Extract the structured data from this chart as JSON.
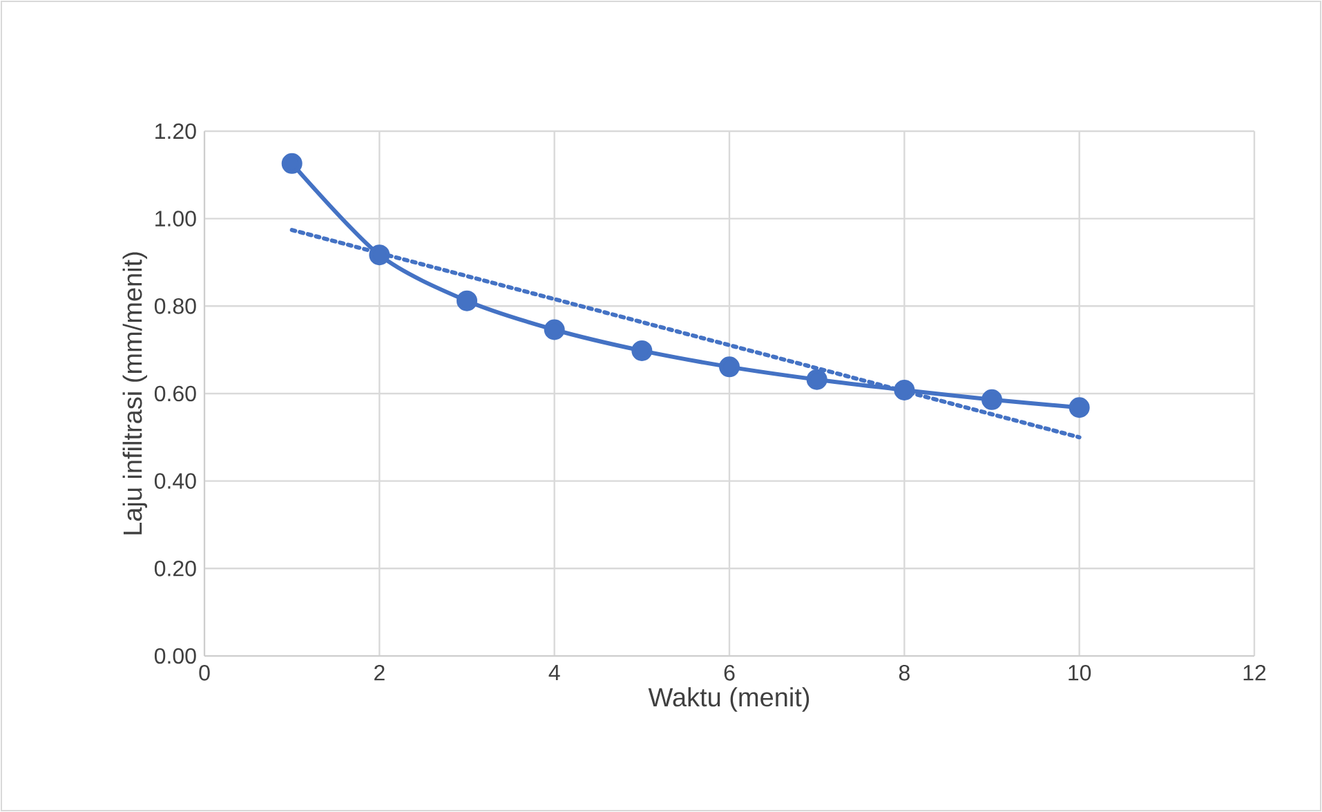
{
  "chart_data": {
    "type": "line",
    "xlabel": "Waktu (menit)",
    "ylabel": "Laju infiltrasi (mm/menit)",
    "xlim": [
      0,
      12
    ],
    "xticks": [
      0,
      2,
      4,
      6,
      8,
      10,
      12
    ],
    "ylim": [
      0,
      1.2
    ],
    "yticks": [
      {
        "value": 0,
        "label": "0.00"
      },
      {
        "value": 0.2,
        "label": "0.20"
      },
      {
        "value": 0.4,
        "label": "0.40"
      },
      {
        "value": 0.6,
        "label": "0.60"
      },
      {
        "value": 0.8,
        "label": "0.80"
      },
      {
        "value": 1.0,
        "label": "1.00"
      },
      {
        "value": 1.2,
        "label": "1.20"
      }
    ],
    "grid": true,
    "legend": false,
    "series": [
      {
        "color": "#4472c4",
        "x": [
          1,
          2,
          3,
          4,
          5,
          6,
          7,
          8,
          9,
          10
        ],
        "values": [
          1.126,
          0.917,
          0.812,
          0.746,
          0.698,
          0.661,
          0.632,
          0.608,
          0.586,
          0.568
        ],
        "marker": "circle",
        "line_style": "solid"
      },
      {
        "color": "#4472c4",
        "x": [
          1,
          10
        ],
        "values": [
          0.974,
          0.5
        ],
        "marker": "none",
        "line_style": "dotted"
      }
    ]
  }
}
